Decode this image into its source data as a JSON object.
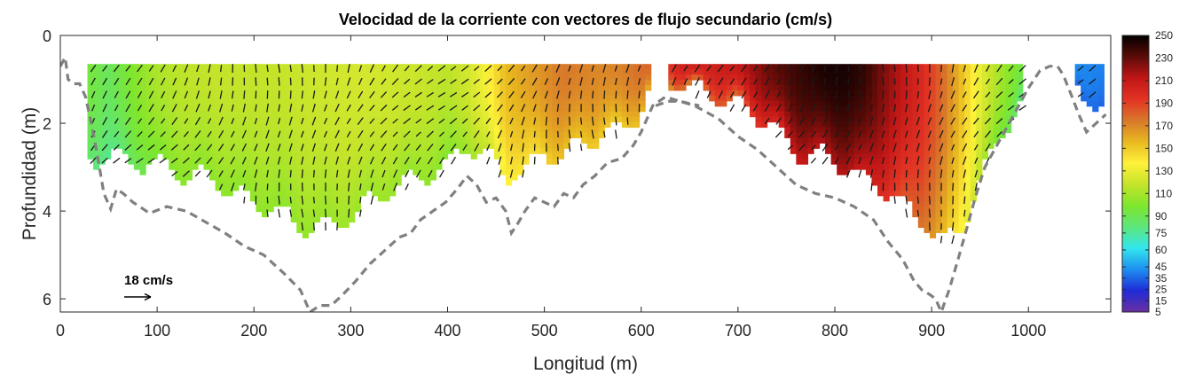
{
  "chart_data": {
    "type": "heatmap",
    "title": "Velocidad de la corriente con vectores de flujo secundario (cm/s)",
    "xlabel": "Longitud (m)",
    "ylabel": "Profundidad (m)",
    "xlim": [
      0,
      1085
    ],
    "ylim": [
      0,
      6.3
    ],
    "y_reversed": true,
    "x_ticks": [
      "0",
      "100",
      "200",
      "300",
      "400",
      "500",
      "600",
      "700",
      "800",
      "900",
      "1000"
    ],
    "y_ticks": [
      "0",
      "2",
      "4",
      "6"
    ],
    "colorbar": {
      "range": [
        5,
        250
      ],
      "ticks": [
        "5",
        "15",
        "25",
        "35",
        "45",
        "60",
        "75",
        "90",
        "110",
        "130",
        "150",
        "170",
        "190",
        "210",
        "230",
        "250"
      ],
      "colormap": [
        "#6a2fa0",
        "#1f2bd8",
        "#1d8ff0",
        "#32e6ee",
        "#5de67c",
        "#7ee62c",
        "#c4e42a",
        "#fff23a",
        "#e8b820",
        "#d8782a",
        "#e23324",
        "#c01616",
        "#5c0b07",
        "#000000"
      ]
    },
    "reference_vector": {
      "label": "18 cm/s",
      "magnitude": 18
    },
    "velocity_profile": {
      "x": [
        30,
        50,
        75,
        100,
        130,
        160,
        190,
        220,
        250,
        280,
        310,
        340,
        370,
        400,
        420,
        440,
        460,
        480,
        500,
        520,
        540,
        560,
        580,
        600,
        615,
        640,
        670,
        700,
        730,
        760,
        790,
        810,
        830,
        850,
        870,
        890,
        910,
        930,
        950,
        970,
        990,
        1050,
        1075
      ],
      "speed": [
        95,
        88,
        100,
        112,
        117,
        118,
        118,
        118,
        120,
        122,
        123,
        122,
        120,
        116,
        122,
        135,
        155,
        162,
        168,
        175,
        172,
        170,
        172,
        178,
        180,
        205,
        205,
        210,
        228,
        238,
        245,
        245,
        240,
        225,
        212,
        200,
        180,
        155,
        130,
        110,
        95,
        42,
        40
      ],
      "bottom_depth": [
        2.7,
        2.7,
        2.8,
        2.9,
        3.1,
        3.2,
        3.7,
        3.9,
        4.3,
        4.3,
        3.9,
        3.4,
        3.2,
        2.9,
        2.4,
        2.7,
        3.1,
        3.0,
        2.6,
        2.7,
        2.4,
        2.2,
        2.1,
        1.6,
        1.0,
        1.0,
        1.3,
        1.5,
        1.9,
        2.6,
        2.7,
        2.9,
        3.2,
        3.4,
        3.8,
        4.1,
        4.7,
        4.3,
        3.3,
        2.2,
        1.5,
        1.1,
        1.6
      ]
    },
    "lines": [
      {
        "style": "dashed",
        "color": "#808080",
        "x": [
          0,
          5,
          8,
          14,
          20,
          26,
          32,
          38,
          45,
          52,
          58,
          65,
          75,
          82,
          92,
          110,
          130,
          150,
          170,
          190,
          210,
          230,
          248,
          258,
          268,
          280,
          292,
          305,
          320,
          335,
          350,
          362,
          372,
          385,
          398,
          410,
          420,
          430,
          440,
          450,
          460,
          466,
          472,
          480,
          490,
          500,
          510,
          520,
          530,
          540,
          552,
          565,
          580,
          592,
          600,
          612,
          625,
          640,
          655,
          680,
          700,
          720,
          740,
          760,
          780,
          800,
          820,
          840,
          855,
          870,
          882,
          890,
          898,
          904,
          910,
          918,
          926,
          935,
          945,
          955,
          970,
          985,
          1000,
          1012,
          1022,
          1030,
          1036,
          1045,
          1052,
          1060,
          1070,
          1080
        ],
        "y": [
          0.7,
          0.5,
          1.0,
          1.1,
          1.1,
          1.4,
          2.0,
          2.7,
          3.6,
          3.95,
          3.5,
          3.6,
          3.8,
          3.9,
          4.05,
          3.9,
          4.0,
          4.25,
          4.5,
          4.8,
          5.0,
          5.4,
          5.8,
          6.3,
          6.15,
          6.15,
          5.9,
          5.6,
          5.2,
          4.9,
          4.6,
          4.5,
          4.2,
          4.0,
          3.8,
          3.5,
          3.2,
          3.4,
          3.8,
          3.7,
          4.0,
          4.5,
          4.3,
          4.0,
          3.7,
          3.8,
          3.9,
          3.6,
          3.7,
          3.4,
          3.2,
          2.9,
          2.8,
          2.5,
          2.2,
          1.6,
          1.4,
          1.5,
          1.6,
          1.9,
          2.3,
          2.6,
          3.0,
          3.4,
          3.6,
          3.7,
          3.9,
          4.2,
          4.7,
          5.1,
          5.6,
          5.8,
          5.9,
          6.0,
          6.3,
          5.8,
          5.2,
          4.5,
          3.7,
          3.0,
          2.4,
          1.8,
          1.2,
          0.8,
          0.7,
          0.7,
          0.9,
          1.4,
          1.8,
          2.2,
          2.0,
          1.8
        ]
      },
      {
        "style": "dashed",
        "color": "#808080",
        "x": [
          615,
          628,
          640,
          660
        ],
        "y": [
          1.6,
          1.5,
          1.5,
          1.6
        ]
      }
    ]
  }
}
